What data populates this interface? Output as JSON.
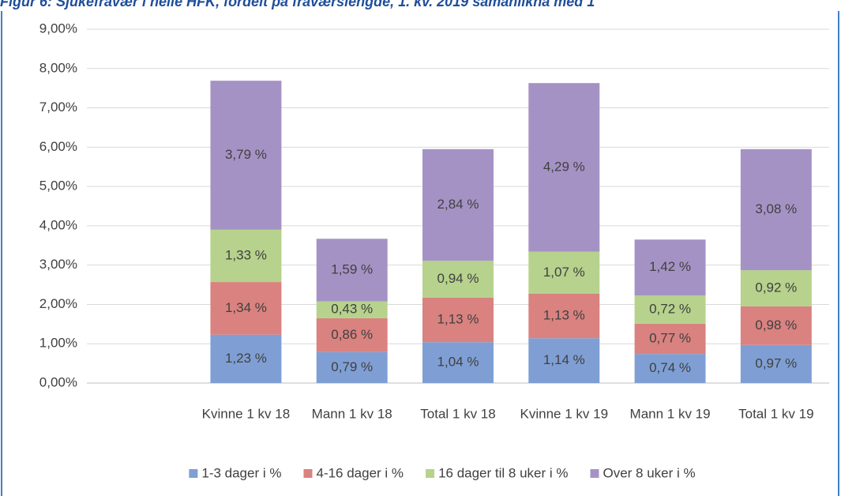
{
  "chart_data": {
    "type": "stacked-bar",
    "title": "Figur 6: Sjukefravær i heile HFK, fordelt på fraværslengde, 1. kv. 2019 samanlikna med 1",
    "categories": [
      null,
      "Kvinne 1 kv 18",
      "Mann 1 kv 18",
      "Total 1 kv 18",
      "Kvinne 1 kv 19",
      "Mann 1 kv 19",
      "Total 1 kv 19"
    ],
    "series": [
      {
        "name": "1-3 dager i %",
        "color": "#7f9fd4",
        "values": [
          null,
          1.23,
          0.79,
          1.04,
          1.14,
          0.74,
          0.97
        ],
        "value_labels": [
          null,
          "1,23 %",
          "0,79 %",
          "1,04 %",
          "1,14 %",
          "0,74 %",
          "0,97 %"
        ]
      },
      {
        "name": "4-16 dager i %",
        "color": "#d98280",
        "values": [
          null,
          1.34,
          0.86,
          1.13,
          1.13,
          0.77,
          0.98
        ],
        "value_labels": [
          null,
          "1,34 %",
          "0,86 %",
          "1,13 %",
          "1,13 %",
          "0,77 %",
          "0,98 %"
        ]
      },
      {
        "name": "16 dager til 8 uker i %",
        "color": "#b6d28c",
        "values": [
          null,
          1.33,
          0.43,
          0.94,
          1.07,
          0.72,
          0.92
        ],
        "value_labels": [
          null,
          "1,33 %",
          "0,43 %",
          "0,94 %",
          "1,07 %",
          "0,72 %",
          "0,92 %"
        ]
      },
      {
        "name": "Over 8 uker i %",
        "color": "#a592c5",
        "values": [
          null,
          3.79,
          1.59,
          2.84,
          4.29,
          1.42,
          3.08
        ],
        "value_labels": [
          null,
          "3,79 %",
          "1,59 %",
          "2,84 %",
          "4,29 %",
          "1,42 %",
          "3,08 %"
        ]
      }
    ],
    "ylim": [
      0,
      9
    ],
    "yticks": [
      {
        "value": 0,
        "label": "0,00%"
      },
      {
        "value": 1,
        "label": "1,00%"
      },
      {
        "value": 2,
        "label": "2,00%"
      },
      {
        "value": 3,
        "label": "3,00%"
      },
      {
        "value": 4,
        "label": "4,00%"
      },
      {
        "value": 5,
        "label": "5,00%"
      },
      {
        "value": 6,
        "label": "6,00%"
      },
      {
        "value": 7,
        "label": "7,00%"
      },
      {
        "value": 8,
        "label": "8,00%"
      },
      {
        "value": 9,
        "label": "9,00%"
      }
    ],
    "grid": true,
    "legend": "bottom"
  }
}
